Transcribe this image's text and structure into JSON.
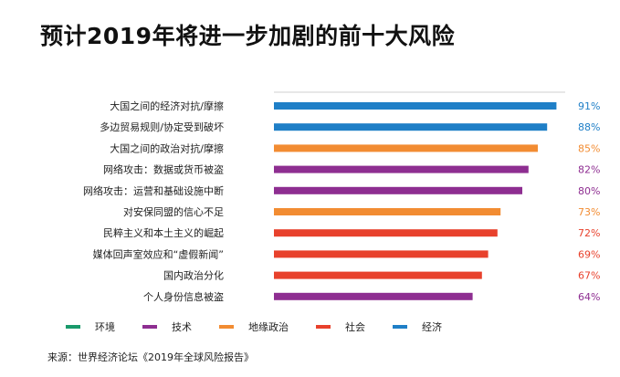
{
  "title": "预计2019年将进一步加剧的前十大风险",
  "source": "来源：世界经济论坛《2019年全球风险报告》",
  "legend": [
    {
      "label": "环境",
      "color": "#1a9a6b"
    },
    {
      "label": "技术",
      "color": "#8e2e91"
    },
    {
      "label": "地缘政治",
      "color": "#f28c32"
    },
    {
      "label": "社会",
      "color": "#e8412c"
    },
    {
      "label": "经济",
      "color": "#1f7fc7"
    }
  ],
  "chart_data": {
    "type": "bar",
    "orientation": "horizontal",
    "title": "预计2019年将进一步加剧的前十大风险",
    "categories": [
      "大国之间的经济对抗/摩擦",
      "多边贸易规则/协定受到破坏",
      "大国之间的政治对抗/摩擦",
      "网络攻击：数据或货币被盗",
      "网络攻击：运营和基础设施中断",
      "对安保同盟的信心不足",
      "民粹主义和本土主义的崛起",
      "媒体回声室效应和“虚假新闻”",
      "国内政治分化",
      "个人身份信息被盗"
    ],
    "values": [
      91,
      88,
      85,
      82,
      80,
      73,
      72,
      69,
      67,
      64
    ],
    "value_labels": [
      "91%",
      "88%",
      "85%",
      "82%",
      "80%",
      "73%",
      "72%",
      "69%",
      "67%",
      "64%"
    ],
    "bar_groups": [
      "经济",
      "经济",
      "地缘政治",
      "技术",
      "技术",
      "地缘政治",
      "社会",
      "社会",
      "社会",
      "技术"
    ],
    "group_colors": {
      "环境": "#1a9a6b",
      "技术": "#8e2e91",
      "地缘政治": "#f28c32",
      "社会": "#e8412c",
      "经济": "#1f7fc7"
    },
    "xlim": [
      0,
      100
    ],
    "grid": false,
    "legend_position": "bottom"
  }
}
